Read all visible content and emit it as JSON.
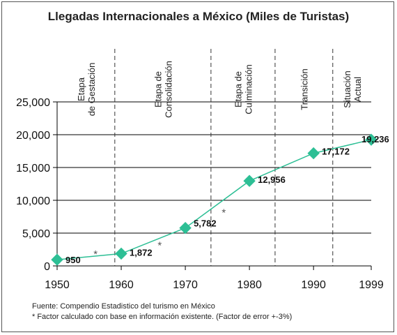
{
  "chart_data": {
    "type": "line",
    "title": "Llegadas Internacionales a México (Miles de Turistas)",
    "xlabel": "",
    "ylabel": "",
    "x_ticks": [
      "1950",
      "1960",
      "1970",
      "1980",
      "1990",
      "1999"
    ],
    "y_ticks": [
      "0",
      "5,000",
      "10,000",
      "15,000",
      "20,000",
      "25,000"
    ],
    "ylim": [
      0,
      25000
    ],
    "grid": "horizontal",
    "series": [
      {
        "marker": "diamond",
        "color": "#2dbf95",
        "points": [
          {
            "x": 1950,
            "y": 950,
            "label": "950"
          },
          {
            "x": 1960,
            "y": 1872,
            "label": "1,872"
          },
          {
            "x": 1970,
            "y": 5782,
            "label": "5,782"
          },
          {
            "x": 1980,
            "y": 12956,
            "label": "12,956"
          },
          {
            "x": 1990,
            "y": 17172,
            "label": "17,172"
          },
          {
            "x": 1999,
            "y": 19236,
            "label": "19,236"
          }
        ]
      }
    ],
    "phases": [
      {
        "label_lines": [
          "Etapa",
          "de Gestación"
        ]
      },
      {
        "label_lines": [
          "Etapa de",
          "Consolidación"
        ]
      },
      {
        "label_lines": [
          "Etapa de",
          "Culminación"
        ]
      },
      {
        "label_lines": [
          "Transición"
        ]
      },
      {
        "label_lines": [
          "Situación",
          "Actual"
        ]
      }
    ],
    "phase_dividers_x": [
      1959,
      1974,
      1984,
      1993
    ],
    "asterisks": [
      {
        "x": 1956,
        "y": 1300,
        "text": "*"
      },
      {
        "x": 1966,
        "y": 2600,
        "text": "*"
      },
      {
        "x": 1976,
        "y": 7600,
        "text": "*"
      }
    ],
    "footnotes": [
      "Fuente: Compendio Estadistico del turismo en México",
      "* Factor calculado con base en información existente. (Factor de error +-3%)"
    ]
  }
}
